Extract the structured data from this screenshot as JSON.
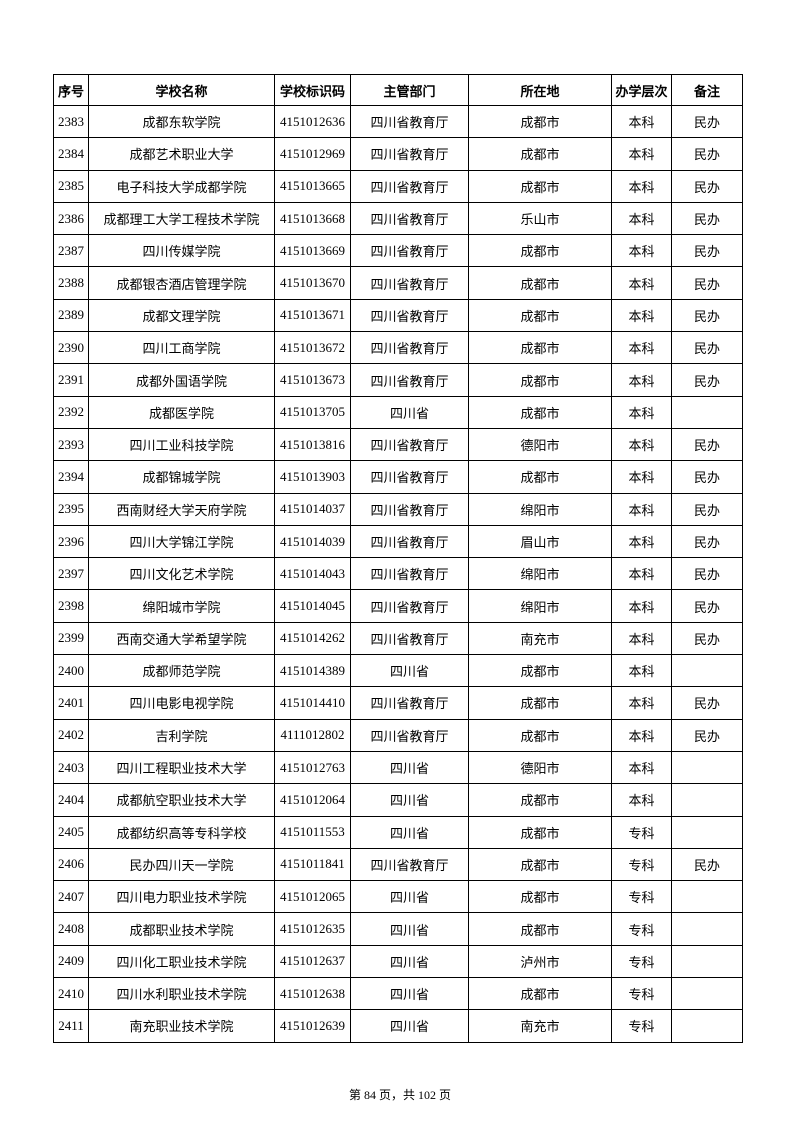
{
  "table": {
    "header": [
      "序号",
      "学校名称",
      "学校标识码",
      "主管部门",
      "所在地",
      "办学层次",
      "备注"
    ],
    "rows": [
      [
        "2383",
        "成都东软学院",
        "4151012636",
        "四川省教育厅",
        "成都市",
        "本科",
        "民办"
      ],
      [
        "2384",
        "成都艺术职业大学",
        "4151012969",
        "四川省教育厅",
        "成都市",
        "本科",
        "民办"
      ],
      [
        "2385",
        "电子科技大学成都学院",
        "4151013665",
        "四川省教育厅",
        "成都市",
        "本科",
        "民办"
      ],
      [
        "2386",
        "成都理工大学工程技术学院",
        "4151013668",
        "四川省教育厅",
        "乐山市",
        "本科",
        "民办"
      ],
      [
        "2387",
        "四川传媒学院",
        "4151013669",
        "四川省教育厅",
        "成都市",
        "本科",
        "民办"
      ],
      [
        "2388",
        "成都银杏酒店管理学院",
        "4151013670",
        "四川省教育厅",
        "成都市",
        "本科",
        "民办"
      ],
      [
        "2389",
        "成都文理学院",
        "4151013671",
        "四川省教育厅",
        "成都市",
        "本科",
        "民办"
      ],
      [
        "2390",
        "四川工商学院",
        "4151013672",
        "四川省教育厅",
        "成都市",
        "本科",
        "民办"
      ],
      [
        "2391",
        "成都外国语学院",
        "4151013673",
        "四川省教育厅",
        "成都市",
        "本科",
        "民办"
      ],
      [
        "2392",
        "成都医学院",
        "4151013705",
        "四川省",
        "成都市",
        "本科"
      ],
      [
        "2393",
        "四川工业科技学院",
        "4151013816",
        "四川省教育厅",
        "德阳市",
        "本科",
        "民办"
      ],
      [
        "2394",
        "成都锦城学院",
        "4151013903",
        "四川省教育厅",
        "成都市",
        "本科",
        "民办"
      ],
      [
        "2395",
        "西南财经大学天府学院",
        "4151014037",
        "四川省教育厅",
        "绵阳市",
        "本科",
        "民办"
      ],
      [
        "2396",
        "四川大学锦江学院",
        "4151014039",
        "四川省教育厅",
        "眉山市",
        "本科",
        "民办"
      ],
      [
        "2397",
        "四川文化艺术学院",
        "4151014043",
        "四川省教育厅",
        "绵阳市",
        "本科",
        "民办"
      ],
      [
        "2398",
        "绵阳城市学院",
        "4151014045",
        "四川省教育厅",
        "绵阳市",
        "本科",
        "民办"
      ],
      [
        "2399",
        "西南交通大学希望学院",
        "4151014262",
        "四川省教育厅",
        "南充市",
        "本科",
        "民办"
      ],
      [
        "2400",
        "成都师范学院",
        "4151014389",
        "四川省",
        "成都市",
        "本科"
      ],
      [
        "2401",
        "四川电影电视学院",
        "4151014410",
        "四川省教育厅",
        "成都市",
        "本科",
        "民办"
      ],
      [
        "2402",
        "吉利学院",
        "4111012802",
        "四川省教育厅",
        "成都市",
        "本科",
        "民办"
      ],
      [
        "2403",
        "四川工程职业技术大学",
        "4151012763",
        "四川省",
        "德阳市",
        "本科"
      ],
      [
        "2404",
        "成都航空职业技术大学",
        "4151012064",
        "四川省",
        "成都市",
        "本科"
      ],
      [
        "2405",
        "成都纺织高等专科学校",
        "4151011553",
        "四川省",
        "成都市",
        "专科"
      ],
      [
        "2406",
        "民办四川天一学院",
        "4151011841",
        "四川省教育厅",
        "成都市",
        "专科",
        "民办"
      ],
      [
        "2407",
        "四川电力职业技术学院",
        "4151012065",
        "四川省",
        "成都市",
        "专科"
      ],
      [
        "2408",
        "成都职业技术学院",
        "4151012635",
        "四川省",
        "成都市",
        "专科"
      ],
      [
        "2409",
        "四川化工职业技术学院",
        "4151012637",
        "四川省",
        "泸州市",
        "专科"
      ],
      [
        "2410",
        "四川水利职业技术学院",
        "4151012638",
        "四川省",
        "成都市",
        "专科"
      ],
      [
        "2411",
        "南充职业技术学院",
        "4151012639",
        "四川省",
        "南充市",
        "专科"
      ]
    ]
  },
  "footer": "第 84 页，共 102 页"
}
